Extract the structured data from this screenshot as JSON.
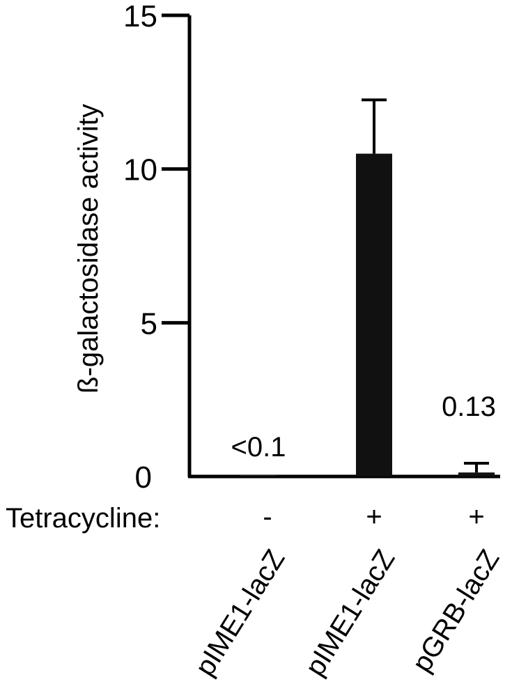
{
  "chart_data": {
    "type": "bar",
    "ylabel": "ß-galactosidase activity",
    "ylim": [
      0,
      15
    ],
    "yticks": [
      "0",
      "5",
      "10",
      "15"
    ],
    "categories": [
      "pIME1-lacZ",
      "pIME1-lacZ",
      "pGRB-lacZ"
    ],
    "values": [
      0.05,
      10.5,
      0.13
    ],
    "errors": [
      0,
      1.75,
      0.3
    ],
    "bar_color": "#111111",
    "value_labels": [
      "<0.1",
      "",
      "0.13"
    ],
    "treatment": {
      "label": "Tetracycline:",
      "signs": [
        "-",
        "+",
        "+"
      ]
    }
  }
}
